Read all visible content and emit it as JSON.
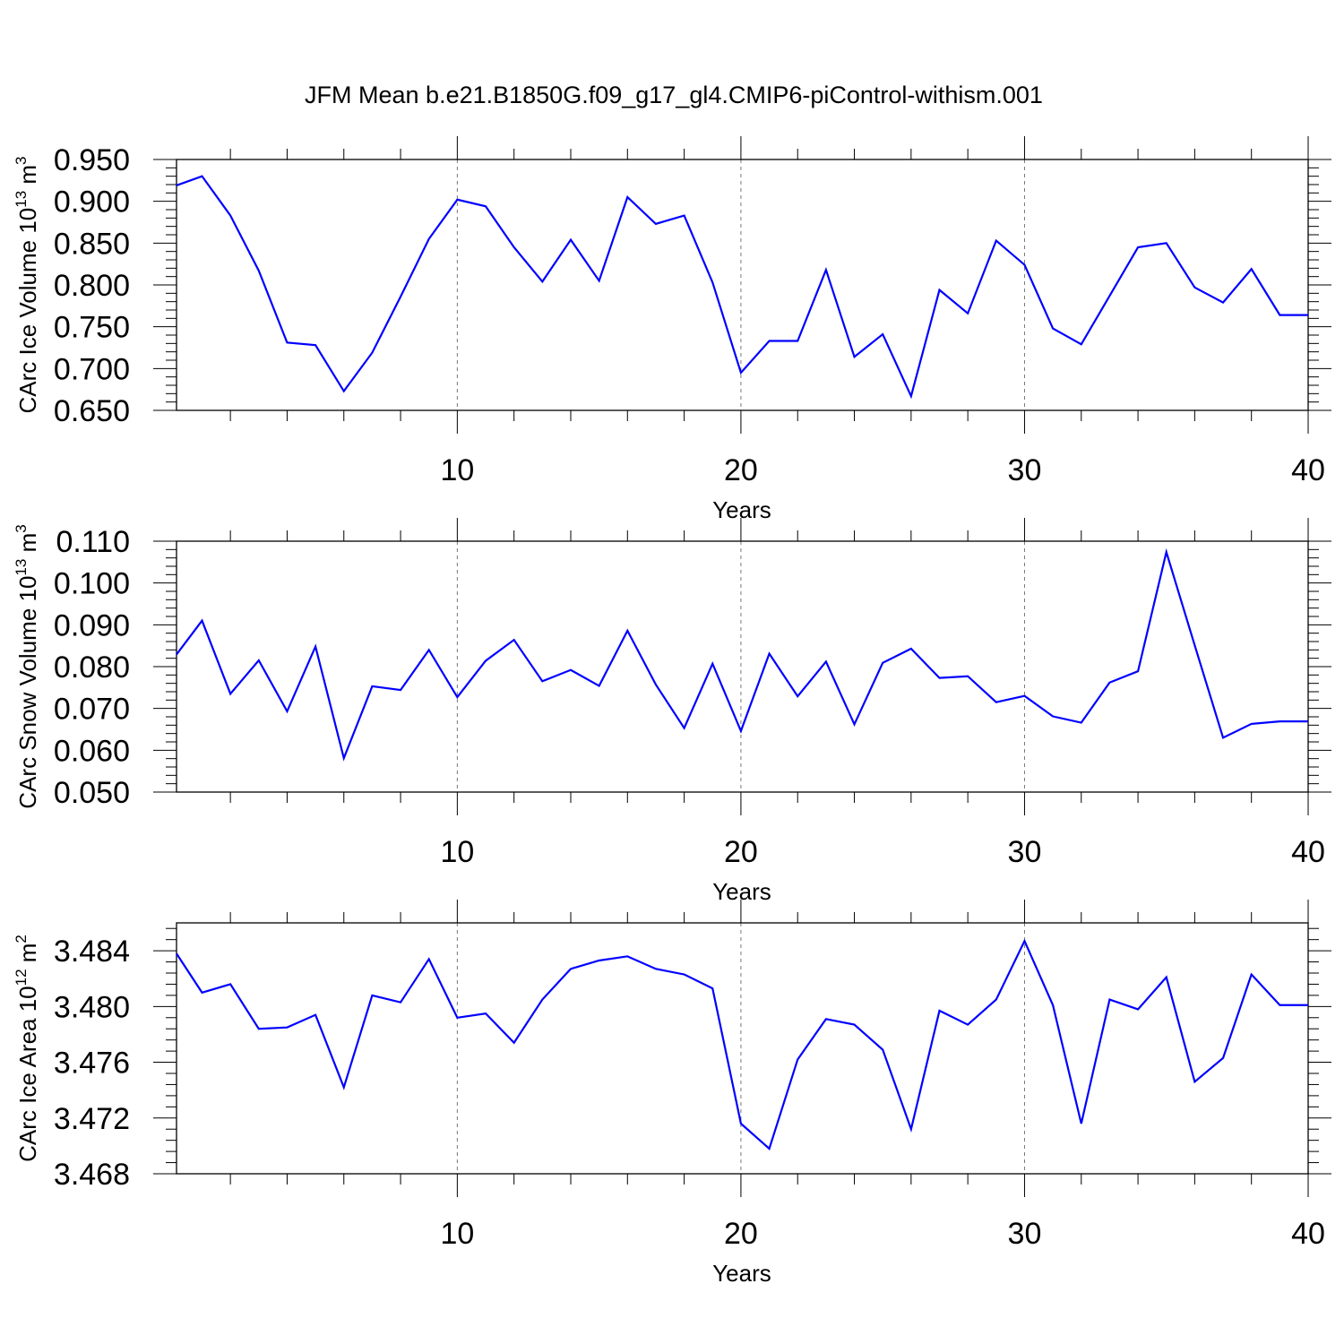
{
  "title": "JFM Mean b.e21.B1850G.f09_g17_gl4.CMIP6-piControl-withism.001",
  "colors": {
    "series": "#0000ff",
    "axis": "#000000",
    "grid": "#777777"
  },
  "chart_data": [
    {
      "type": "line",
      "ylabel_main": "CArc Ice Volume 10",
      "ylabel_sup": "13",
      "ylabel_unit": " m",
      "ylabel_unit_sup": "3",
      "xlabel": "Years",
      "xlim": [
        0.1,
        40
      ],
      "ylim": [
        0.65,
        0.95
      ],
      "x_ticks": [
        10,
        20,
        30,
        40
      ],
      "y_ticks": [
        "0.650",
        "0.700",
        "0.750",
        "0.800",
        "0.850",
        "0.900",
        "0.950"
      ],
      "y_tick_values": [
        0.65,
        0.7,
        0.75,
        0.8,
        0.85,
        0.9,
        0.95
      ],
      "grid_x": [
        10,
        20,
        30
      ],
      "x": [
        1,
        2,
        3,
        4,
        5,
        6,
        7,
        8,
        9,
        10,
        11,
        12,
        13,
        14,
        15,
        16,
        17,
        18,
        19,
        20,
        21,
        22,
        23,
        24,
        25,
        26,
        27,
        28,
        29,
        30,
        31,
        32,
        33,
        34,
        35,
        36,
        37,
        38,
        39,
        40
      ],
      "values": [
        0.93,
        0.883,
        0.817,
        0.731,
        0.728,
        0.673,
        0.719,
        0.786,
        0.855,
        0.902,
        0.894,
        0.845,
        0.804,
        0.854,
        0.805,
        0.905,
        0.873,
        0.883,
        0.803,
        0.695,
        0.733,
        0.733,
        0.818,
        0.714,
        0.741,
        0.667,
        0.794,
        0.766,
        0.853,
        0.824,
        0.748,
        0.729,
        0.787,
        0.845,
        0.85,
        0.797,
        0.779,
        0.819,
        0.764,
        0.764
      ],
      "start_value": 0.919
    },
    {
      "type": "line",
      "ylabel_main": "CArc Snow Volume 10",
      "ylabel_sup": "13",
      "ylabel_unit": " m",
      "ylabel_unit_sup": "3",
      "xlabel": "Years",
      "xlim": [
        0.1,
        40
      ],
      "ylim": [
        0.05,
        0.11
      ],
      "x_ticks": [
        10,
        20,
        30,
        40
      ],
      "y_ticks": [
        "0.050",
        "0.060",
        "0.070",
        "0.080",
        "0.090",
        "0.100",
        "0.110"
      ],
      "y_tick_values": [
        0.05,
        0.06,
        0.07,
        0.08,
        0.09,
        0.1,
        0.11
      ],
      "grid_x": [
        10,
        20,
        30
      ],
      "x": [
        1,
        2,
        3,
        4,
        5,
        6,
        7,
        8,
        9,
        10,
        11,
        12,
        13,
        14,
        15,
        16,
        17,
        18,
        19,
        20,
        21,
        22,
        23,
        24,
        25,
        26,
        27,
        28,
        29,
        30,
        31,
        32,
        33,
        34,
        35,
        36,
        37,
        38,
        39,
        40
      ],
      "values": [
        0.091,
        0.0735,
        0.0815,
        0.0693,
        0.0848,
        0.0581,
        0.0753,
        0.0744,
        0.084,
        0.0727,
        0.0814,
        0.0864,
        0.0765,
        0.0792,
        0.0754,
        0.0886,
        0.0757,
        0.0653,
        0.0807,
        0.0646,
        0.0831,
        0.0729,
        0.0812,
        0.0662,
        0.0809,
        0.0843,
        0.0773,
        0.0777,
        0.0715,
        0.073,
        0.0681,
        0.0666,
        0.0762,
        0.0789,
        0.1074,
        0.0851,
        0.063,
        0.0663,
        0.0669,
        0.0669
      ],
      "start_value": 0.0829
    },
    {
      "type": "line",
      "ylabel_main": "CArc Ice Area 10",
      "ylabel_sup": "12",
      "ylabel_unit": " m",
      "ylabel_unit_sup": "2",
      "xlabel": "Years",
      "xlim": [
        0.1,
        40
      ],
      "ylim": [
        3.468,
        3.486
      ],
      "x_ticks": [
        10,
        20,
        30,
        40
      ],
      "y_ticks": [
        "3.468",
        "3.472",
        "3.476",
        "3.480",
        "3.484"
      ],
      "y_tick_values": [
        3.468,
        3.472,
        3.476,
        3.48,
        3.484
      ],
      "grid_x": [
        10,
        20,
        30
      ],
      "x": [
        1,
        2,
        3,
        4,
        5,
        6,
        7,
        8,
        9,
        10,
        11,
        12,
        13,
        14,
        15,
        16,
        17,
        18,
        19,
        20,
        21,
        22,
        23,
        24,
        25,
        26,
        27,
        28,
        29,
        30,
        31,
        32,
        33,
        34,
        35,
        36,
        37,
        38,
        39,
        40
      ],
      "values": [
        3.481,
        3.4816,
        3.4784,
        3.4785,
        3.4794,
        3.4742,
        3.4808,
        3.4803,
        3.4834,
        3.4792,
        3.4795,
        3.4774,
        3.4805,
        3.4827,
        3.4833,
        3.4836,
        3.4827,
        3.4823,
        3.4813,
        3.4716,
        3.4698,
        3.4762,
        3.4791,
        3.4787,
        3.4769,
        3.4712,
        3.4797,
        3.4787,
        3.4805,
        3.4847,
        3.4801,
        3.4716,
        3.4805,
        3.4798,
        3.4821,
        3.4746,
        3.4763,
        3.4823,
        3.4801,
        3.4801
      ],
      "start_value": 3.4838
    }
  ]
}
